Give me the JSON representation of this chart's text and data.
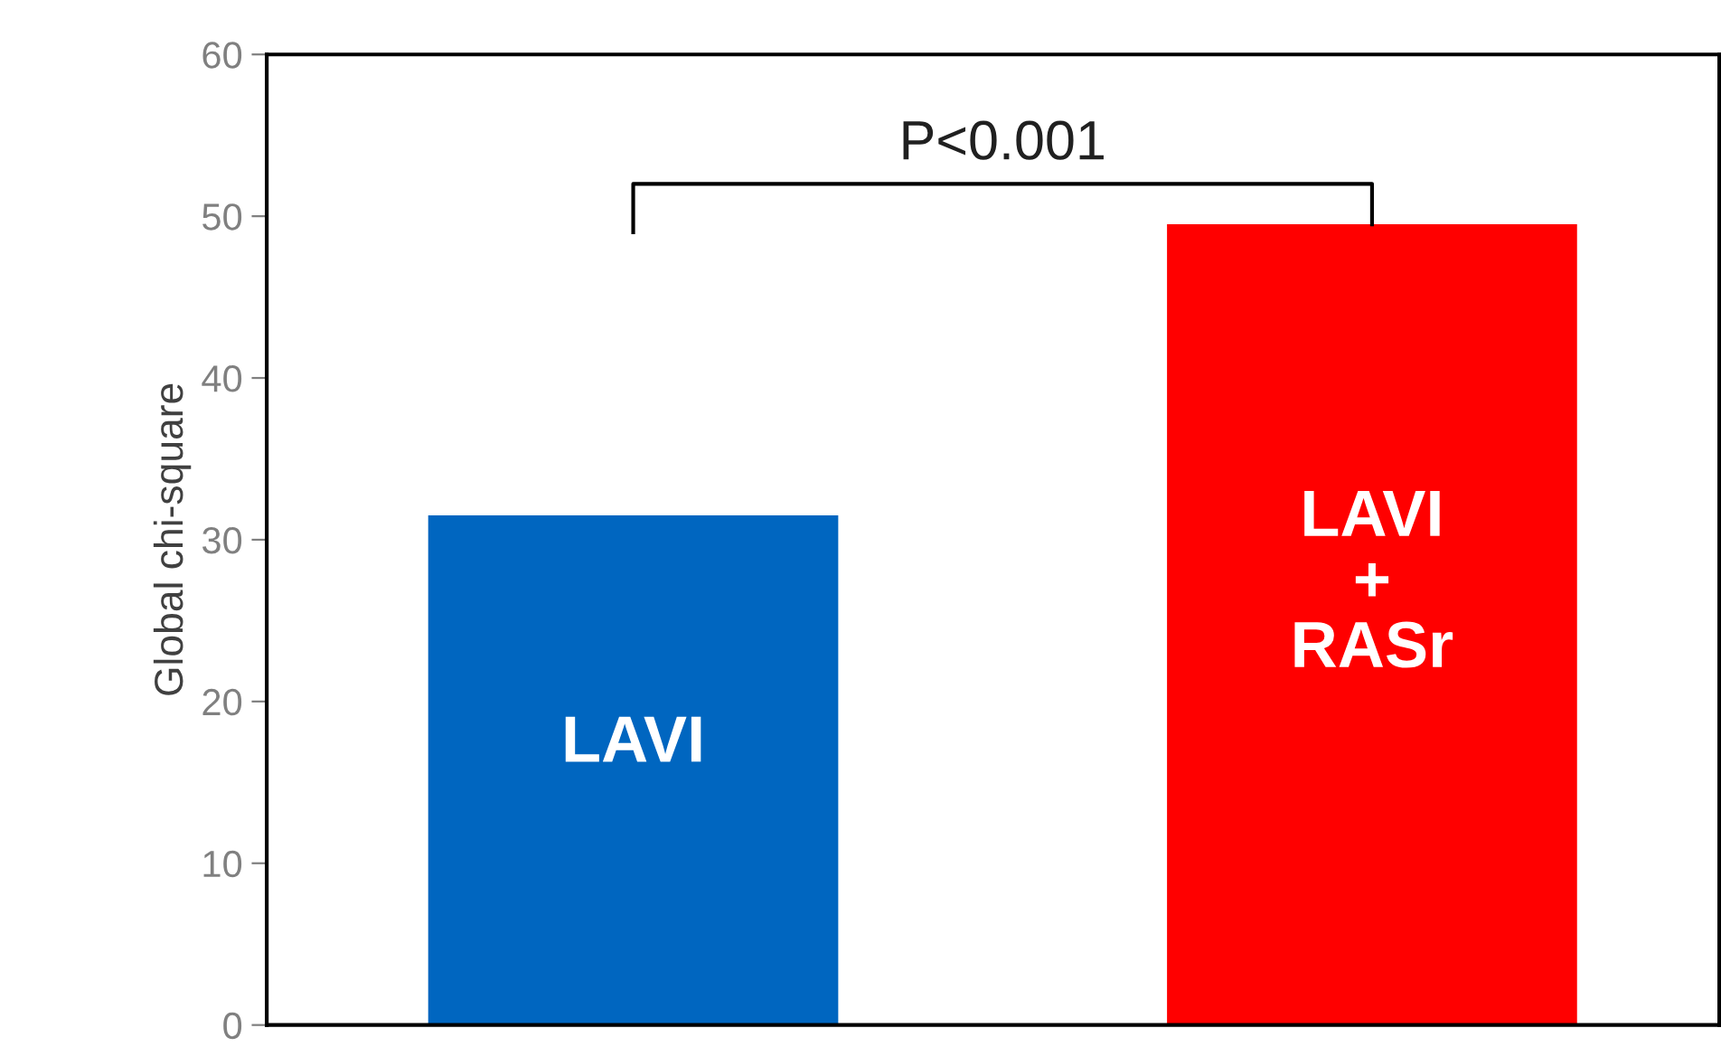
{
  "chart_data": {
    "type": "bar",
    "ylabel": "Global chi-square",
    "categories": [
      "LAVI",
      "LAVI\n+\nRASr"
    ],
    "values": [
      31.5,
      49.5
    ],
    "colors": [
      "#0066c0",
      "#ff0000"
    ],
    "ylim": [
      0,
      60
    ],
    "yticks": [
      0,
      10,
      20,
      30,
      40,
      50,
      60
    ],
    "tick_labels": "y",
    "grid": false,
    "annotations": [
      "P<0.001"
    ]
  }
}
